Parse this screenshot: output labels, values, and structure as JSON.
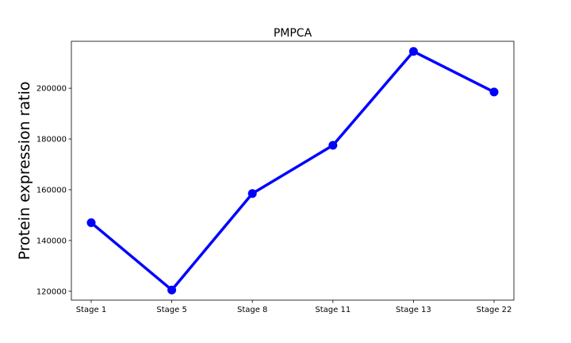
{
  "chart_data": {
    "type": "line",
    "title": "PMPCA",
    "xlabel": "",
    "ylabel": "Protein expression ratio",
    "categories": [
      "Stage 1",
      "Stage 5",
      "Stage 8",
      "Stage 11",
      "Stage 13",
      "Stage 22"
    ],
    "series": [
      {
        "values": [
          147000,
          120500,
          158500,
          177500,
          214500,
          198500
        ],
        "color": "#0000ff"
      }
    ],
    "ylim": [
      116500,
      218500
    ],
    "yticks": [
      120000,
      140000,
      160000,
      180000,
      200000
    ],
    "grid": false,
    "legend": "none"
  }
}
